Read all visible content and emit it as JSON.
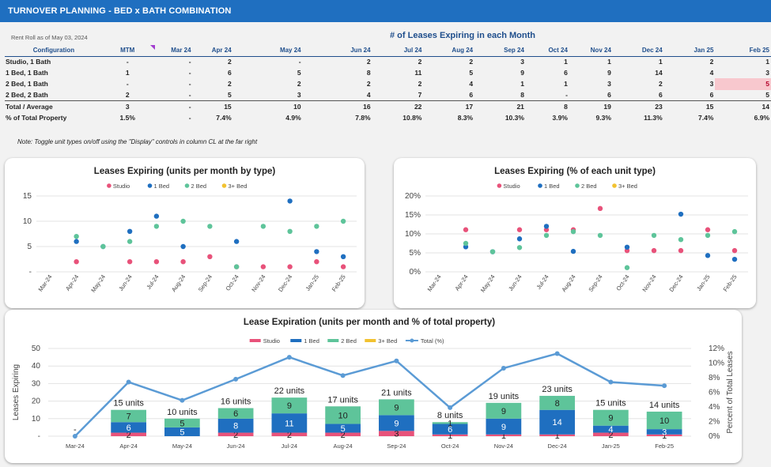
{
  "header": {
    "title": "TURNOVER PLANNING - BED x BATH COMBINATION"
  },
  "rent_roll": "Rent Roll as of May 03, 2024",
  "table": {
    "super_title": "# of Leases Expiring in each Month",
    "columns": [
      "Configuration",
      "MTM",
      "Mar 24",
      "Apr 24",
      "May 24",
      "Jun 24",
      "Jul 24",
      "Aug 24",
      "Sep 24",
      "Oct 24",
      "Nov 24",
      "Dec 24",
      "Jan 25",
      "Feb 25"
    ],
    "rows": [
      [
        "Studio, 1 Bath",
        "-",
        "-",
        "2",
        "-",
        "2",
        "2",
        "2",
        "3",
        "1",
        "1",
        "1",
        "2",
        "1"
      ],
      [
        "1 Bed, 1 Bath",
        "1",
        "-",
        "6",
        "5",
        "8",
        "11",
        "5",
        "9",
        "6",
        "9",
        "14",
        "4",
        "3"
      ],
      [
        "2 Bed, 1 Bath",
        "-",
        "-",
        "2",
        "2",
        "2",
        "2",
        "4",
        "1",
        "1",
        "3",
        "2",
        "3",
        "5"
      ],
      [
        "2 Bed, 2 Bath",
        "2",
        "-",
        "5",
        "3",
        "4",
        "7",
        "6",
        "8",
        "-",
        "6",
        "6",
        "6",
        "5"
      ],
      [
        "Total / Average",
        "3",
        "-",
        "15",
        "10",
        "16",
        "22",
        "17",
        "21",
        "8",
        "19",
        "23",
        "15",
        "14"
      ],
      [
        "% of Total Property",
        "1.5%",
        "-",
        "7.4%",
        "4.9%",
        "7.8%",
        "10.8%",
        "8.3%",
        "10.3%",
        "3.9%",
        "9.3%",
        "11.3%",
        "7.4%",
        "6.9%"
      ]
    ]
  },
  "note": "Note: Toggle unit types on/off using the \"Display\" controls in column CL at the far right",
  "colors": {
    "studio": "#e8527a",
    "bed1": "#1f6fc0",
    "bed2": "#5ec49a",
    "bed3": "#f2c230",
    "total": "#5b9bd5",
    "header": "#1f6fc0"
  },
  "chart_data": [
    {
      "type": "scatter",
      "title": "Leases Expiring (units per month by type)",
      "categories": [
        "Mar-24",
        "Apr-24",
        "May-24",
        "Jun-24",
        "Jul-24",
        "Aug-24",
        "Sep-24",
        "Oct-24",
        "Nov-24",
        "Dec-24",
        "Jan-25",
        "Feb-25"
      ],
      "yticks": [
        "-",
        "5",
        "10",
        "15"
      ],
      "ylim": [
        0,
        15
      ],
      "legend": "top",
      "series": [
        {
          "name": "Studio",
          "values": [
            null,
            2,
            null,
            2,
            2,
            2,
            3,
            1,
            1,
            1,
            2,
            1
          ]
        },
        {
          "name": "1 Bed",
          "values": [
            null,
            6,
            5,
            8,
            11,
            5,
            null,
            6,
            null,
            14,
            4,
            3
          ]
        },
        {
          "name": "2 Bed",
          "values": [
            null,
            7,
            5,
            6,
            9,
            10,
            9,
            1,
            9,
            8,
            9,
            10
          ]
        },
        {
          "name": "3+ Bed",
          "values": [
            null,
            null,
            null,
            null,
            null,
            null,
            null,
            null,
            null,
            null,
            null,
            null
          ]
        }
      ]
    },
    {
      "type": "scatter",
      "title": "Leases Expiring (% of each unit type)",
      "categories": [
        "Mar-24",
        "Apr-24",
        "May-24",
        "Jun-24",
        "Jul-24",
        "Aug-24",
        "Sep-24",
        "Oct-24",
        "Nov-24",
        "Dec-24",
        "Jan-25",
        "Feb-25"
      ],
      "yticks": [
        "0%",
        "5%",
        "10%",
        "15%",
        "20%"
      ],
      "ylim": [
        0,
        20
      ],
      "legend": "top",
      "series": [
        {
          "name": "Studio",
          "values": [
            null,
            11.1,
            null,
            11.1,
            11.1,
            11.1,
            16.7,
            5.6,
            5.6,
            5.6,
            11.1,
            5.6
          ]
        },
        {
          "name": "1 Bed",
          "values": [
            null,
            6.6,
            5.3,
            8.7,
            12.0,
            5.4,
            null,
            6.5,
            null,
            15.2,
            4.3,
            3.3
          ]
        },
        {
          "name": "2 Bed",
          "values": [
            null,
            7.5,
            5.3,
            6.4,
            9.6,
            10.6,
            9.6,
            1.1,
            9.6,
            8.5,
            9.6,
            10.6
          ]
        },
        {
          "name": "3+ Bed",
          "values": [
            null,
            null,
            null,
            null,
            null,
            null,
            null,
            null,
            null,
            null,
            null,
            null
          ]
        }
      ]
    },
    {
      "type": "bar",
      "stacked": true,
      "title": "Lease Expiration (units per month and % of total property)",
      "categories": [
        "Mar-24",
        "Apr-24",
        "May-24",
        "Jun-24",
        "Jul-24",
        "Aug-24",
        "Sep-24",
        "Oct-24",
        "Nov-24",
        "Dec-24",
        "Jan-25",
        "Feb-25"
      ],
      "ylabel": "Leases Expiring",
      "y2label": "Percent of Total Leases",
      "ylim": [
        0,
        50
      ],
      "y2lim": [
        0,
        12
      ],
      "yticks": [
        "-",
        "10",
        "20",
        "30",
        "40",
        "50"
      ],
      "y2ticks": [
        "0%",
        "2%",
        "4%",
        "6%",
        "8%",
        "10%",
        "12%"
      ],
      "legend": "top",
      "series": [
        {
          "name": "Studio",
          "values": [
            0,
            2,
            0,
            2,
            2,
            2,
            3,
            1,
            1,
            1,
            2,
            1
          ]
        },
        {
          "name": "1 Bed",
          "values": [
            0,
            6,
            5,
            8,
            11,
            5,
            9,
            6,
            9,
            14,
            4,
            3
          ]
        },
        {
          "name": "2 Bed",
          "values": [
            0,
            7,
            5,
            6,
            9,
            10,
            9,
            1,
            9,
            8,
            9,
            10
          ]
        },
        {
          "name": "3+ Bed",
          "values": [
            0,
            0,
            0,
            0,
            0,
            0,
            0,
            0,
            0,
            0,
            0,
            0
          ]
        }
      ],
      "segment_labels": [
        [
          "",
          "2",
          "",
          "2",
          "2",
          "2",
          "3",
          "1",
          "1",
          "1",
          "2",
          "1"
        ],
        [
          "",
          "6",
          "5",
          "8",
          "11",
          "5",
          "9",
          "6",
          "9",
          "14",
          "4",
          "3"
        ],
        [
          "",
          "7",
          "5",
          "6",
          "9",
          "10",
          "9",
          "1",
          "9",
          "8",
          "9",
          "10"
        ]
      ],
      "total_labels": [
        "-",
        "15 units",
        "10 units",
        "16 units",
        "22 units",
        "17 units",
        "21 units",
        "8 units",
        "19 units",
        "23 units",
        "15 units",
        "14 units"
      ],
      "line": {
        "name": "Total (%)",
        "values": [
          0,
          7.4,
          4.9,
          7.8,
          10.8,
          8.3,
          10.3,
          3.9,
          9.3,
          11.3,
          7.4,
          6.9
        ]
      }
    }
  ]
}
